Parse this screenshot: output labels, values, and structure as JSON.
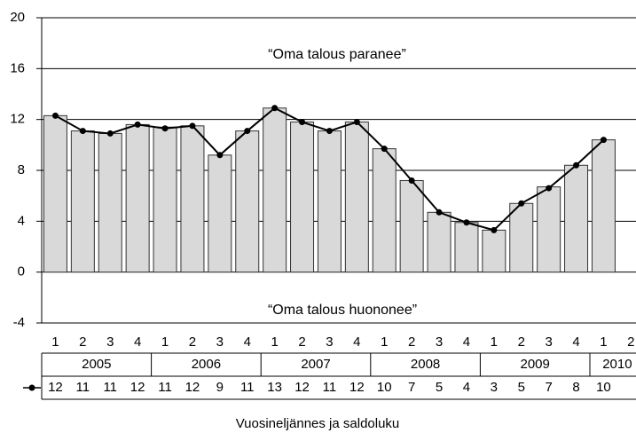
{
  "chart_data": {
    "type": "bar_line",
    "annotations": [
      "“Oma talous paranee”",
      "“Oma talous huononee”"
    ],
    "x_label": "Vuosineljännes ja saldoluku",
    "categories": [
      "1",
      "2",
      "3",
      "4",
      "1",
      "2",
      "3",
      "4",
      "1",
      "2",
      "3",
      "4",
      "1",
      "2",
      "3",
      "4",
      "1",
      "2",
      "3",
      "4",
      "1",
      "2"
    ],
    "years": [
      "2005",
      "2006",
      "2007",
      "2008",
      "2009",
      "2010"
    ],
    "series": [
      {
        "type": "bar",
        "color": "#d9d9d9",
        "values": [
          12.3,
          11.1,
          10.9,
          11.6,
          11.4,
          11.5,
          9.2,
          11.1,
          12.9,
          11.8,
          11.1,
          11.8,
          9.7,
          7.2,
          4.7,
          3.9,
          3.3,
          5.4,
          6.7,
          8.4,
          10.4,
          null
        ]
      },
      {
        "type": "line",
        "color": "#000000",
        "values": [
          12.3,
          11.1,
          10.9,
          11.6,
          11.3,
          11.5,
          9.2,
          11.1,
          12.9,
          11.8,
          11.1,
          11.8,
          9.7,
          7.2,
          4.7,
          3.9,
          3.3,
          5.4,
          6.6,
          8.4,
          10.4,
          null
        ],
        "value_labels": [
          "12",
          "11",
          "11",
          "12",
          "11",
          "12",
          "9",
          "11",
          "13",
          "12",
          "11",
          "12",
          "10",
          "7",
          "5",
          "4",
          "3",
          "5",
          "7",
          "8",
          "10",
          null
        ]
      }
    ],
    "ylim": [
      -4,
      20
    ],
    "yticks": [
      -4,
      0,
      4,
      8,
      12,
      16,
      20
    ],
    "grid": true
  }
}
